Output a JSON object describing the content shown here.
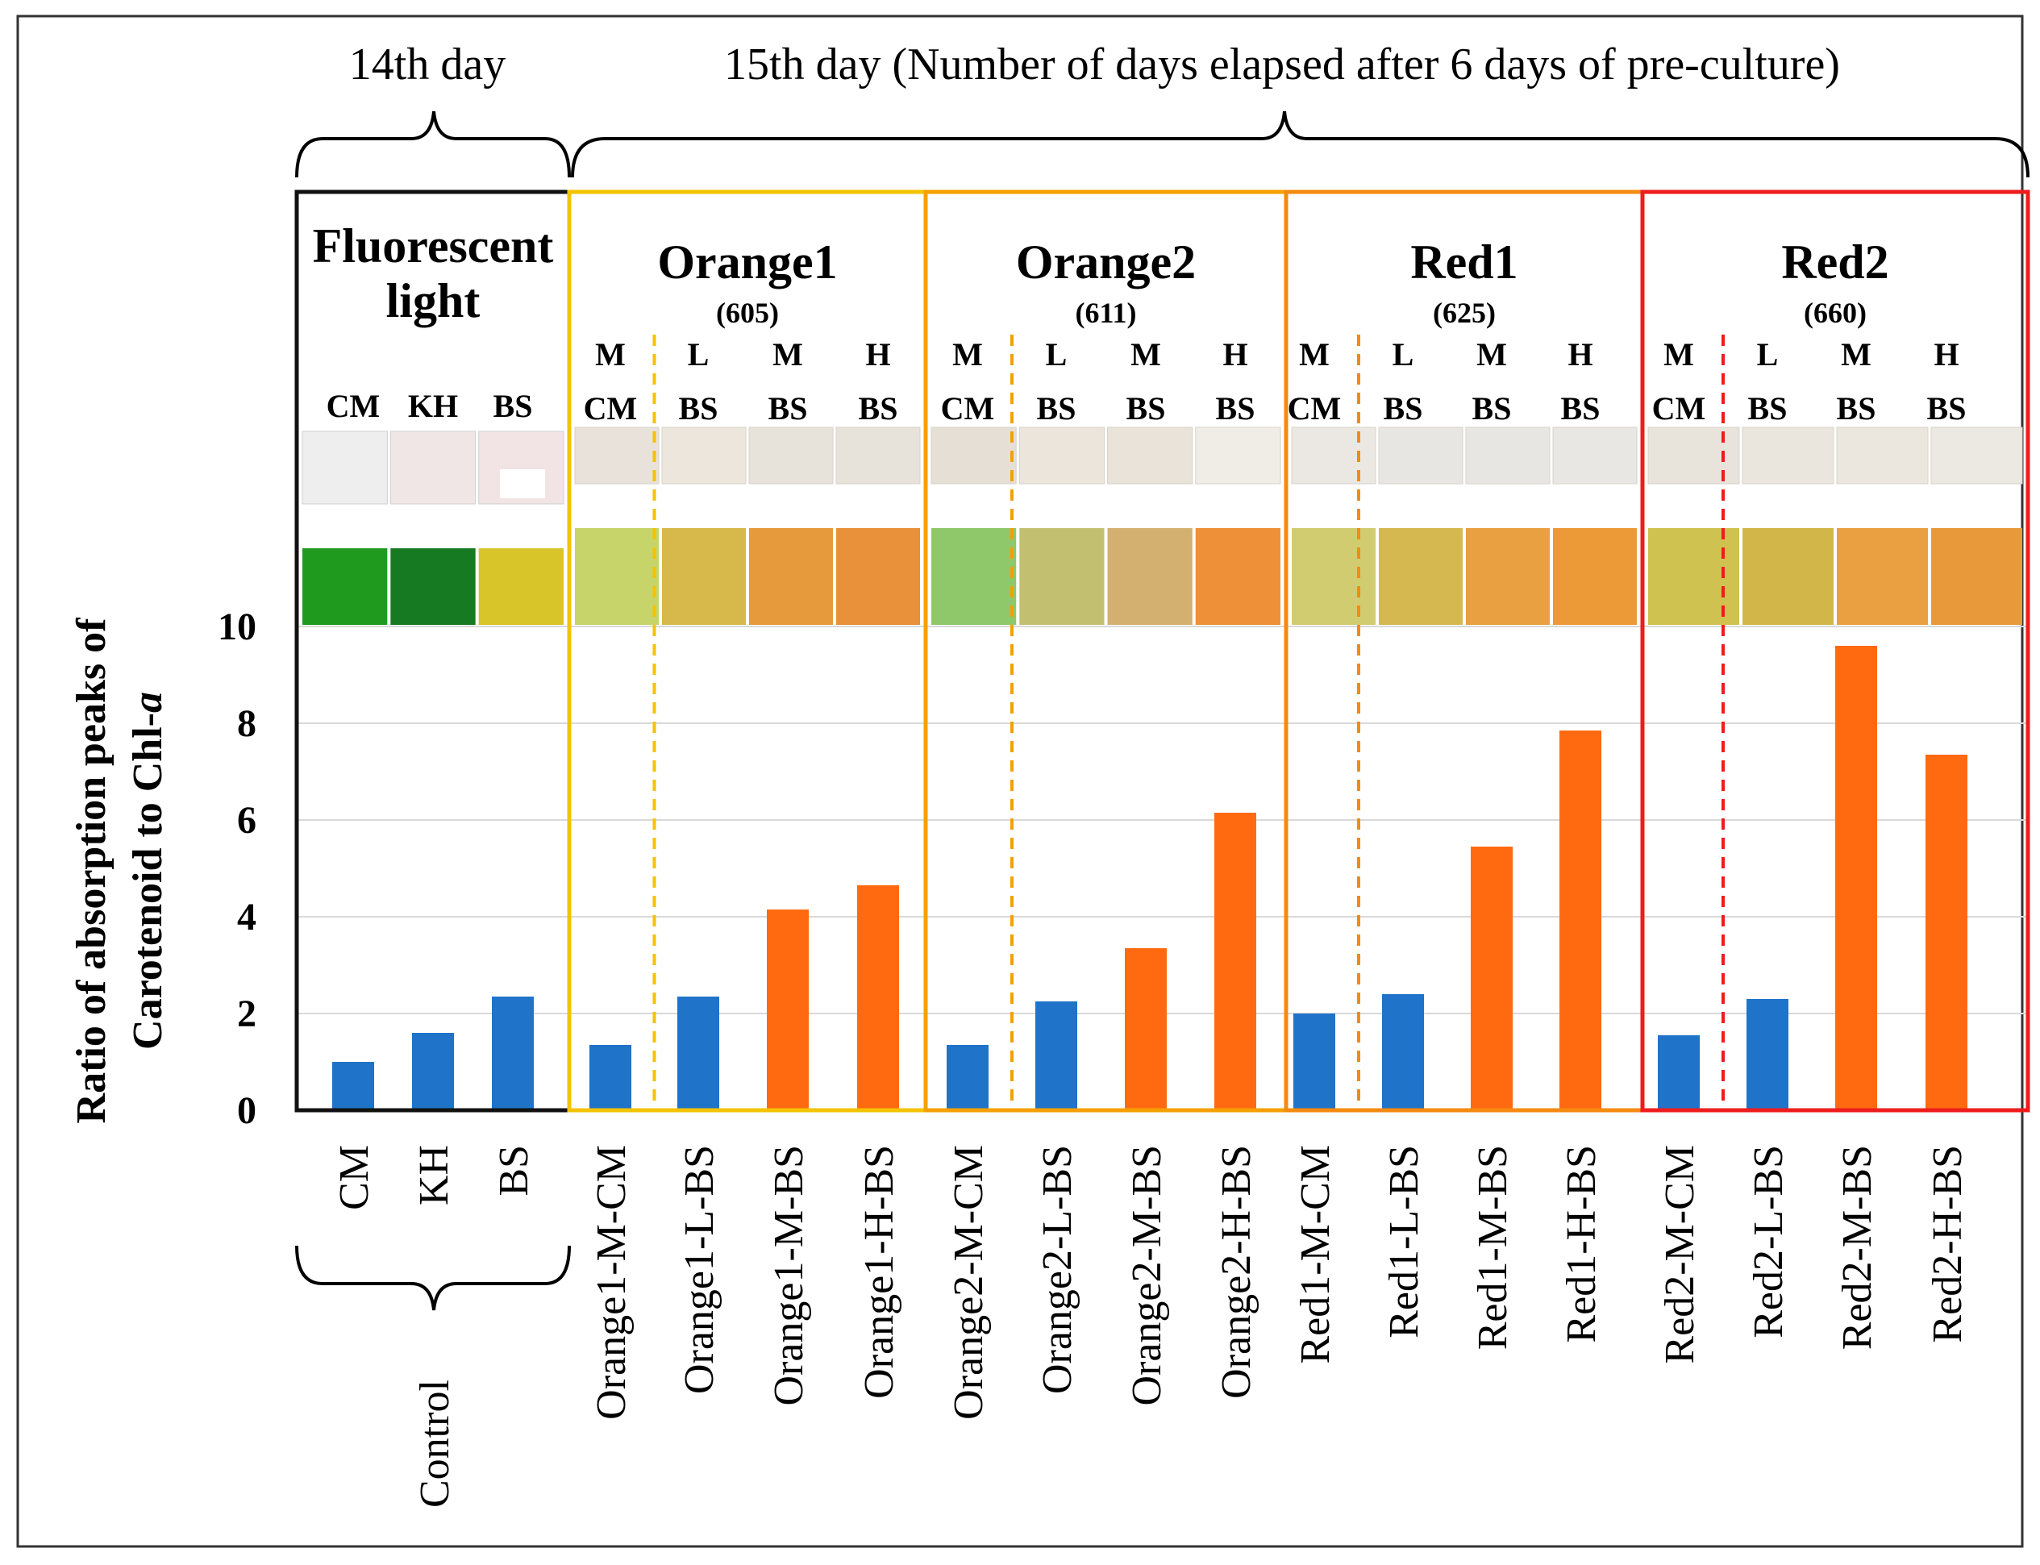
{
  "chart_data": {
    "type": "bar",
    "title": "",
    "xlabel": "",
    "ylabel_line1": "Ratio of absorption peaks of",
    "ylabel_line2": "Carotenoid to Chl-",
    "ylabel_italic": "a",
    "ylim": [
      0,
      10
    ],
    "yticks": [
      "0",
      "2",
      "4",
      "6",
      "8",
      "10"
    ],
    "grid": true,
    "legend": "none",
    "header_day14": "14th day",
    "header_day15": "15th day (Number of days elapsed after 6 days of pre-culture)",
    "control_label": "Control",
    "colors": {
      "blue": "#1f73c8",
      "orange": "#ff6a10"
    },
    "groups": [
      {
        "name": "Fluorescent",
        "name2": "light",
        "wavelength": "",
        "border_color": "#111111",
        "divider_color": "",
        "levels": [
          "",
          "",
          ""
        ],
        "media": [
          "CM",
          "KH",
          "BS"
        ]
      },
      {
        "name": "Orange1",
        "name2": "",
        "wavelength": "(605)",
        "border_color": "#f4c300",
        "divider_color": "#f4c300",
        "levels": [
          "M",
          "L",
          "M",
          "H"
        ],
        "media": [
          "CM",
          "BS",
          "BS",
          "BS"
        ]
      },
      {
        "name": "Orange2",
        "name2": "",
        "wavelength": "(611)",
        "border_color": "#f5a000",
        "divider_color": "#f5a000",
        "levels": [
          "M",
          "L",
          "M",
          "H"
        ],
        "media": [
          "CM",
          "BS",
          "BS",
          "BS"
        ]
      },
      {
        "name": "Red1",
        "name2": "",
        "wavelength": "(625)",
        "border_color": "#f58a10",
        "divider_color": "#f58a10",
        "levels": [
          "M",
          "L",
          "M",
          "H"
        ],
        "media": [
          "CM",
          "BS",
          "BS",
          "BS"
        ]
      },
      {
        "name": "Red2",
        "name2": "",
        "wavelength": "(660)",
        "border_color": "#ee1c1c",
        "divider_color": "#ee1c1c",
        "levels": [
          "M",
          "L",
          "M",
          "H"
        ],
        "media": [
          "CM",
          "BS",
          "BS",
          "BS"
        ]
      }
    ],
    "categories": [
      "CM",
      "KH",
      "BS",
      "Orange1-M-CM",
      "Orange1-L-BS",
      "Orange1-M-BS",
      "Orange1-H-BS",
      "Orange2-M-CM",
      "Orange2-L-BS",
      "Orange2-M-BS",
      "Orange2-H-BS",
      "Red1-M-CM",
      "Red1-L-BS",
      "Red1-M-BS",
      "Red1-H-BS",
      "Red2-M-CM",
      "Red2-L-BS",
      "Red2-M-BS",
      "Red2-H-BS"
    ],
    "values": [
      1.0,
      1.6,
      2.35,
      1.35,
      2.35,
      4.15,
      4.65,
      1.35,
      2.25,
      3.35,
      6.15,
      2.0,
      2.4,
      5.45,
      7.85,
      1.55,
      2.3,
      9.6,
      7.35
    ],
    "bar_colors": [
      "blue",
      "blue",
      "blue",
      "blue",
      "blue",
      "orange",
      "orange",
      "blue",
      "blue",
      "orange",
      "orange",
      "blue",
      "blue",
      "orange",
      "orange",
      "blue",
      "blue",
      "orange",
      "orange"
    ],
    "vial_cap_colors": [
      "#eeeeee",
      "#f1e6e6",
      "#f2e4e4",
      "#e9e2da",
      "#ece6dc",
      "#e7e3db",
      "#e8e3da",
      "#e6dfd6",
      "#ebe5dc",
      "#e9e3da",
      "#f0ece6",
      "#ebe8e4",
      "#e8e6e2",
      "#e8e6e3",
      "#e9e7e3",
      "#e8e4dc",
      "#eae6de",
      "#ebe7df",
      "#ece8e2"
    ],
    "vial_liquid_colors": [
      "#1f9a1f",
      "#167a22",
      "#d8c52a",
      "#c7d46a",
      "#d6b94a",
      "#e79a3c",
      "#e8903a",
      "#8fc86a",
      "#c2c070",
      "#d4b070",
      "#ee9038",
      "#d2cc70",
      "#d6b850",
      "#e8a040",
      "#ec9a38",
      "#cfc250",
      "#d2b64a",
      "#eaa040",
      "#e89a3a"
    ]
  }
}
